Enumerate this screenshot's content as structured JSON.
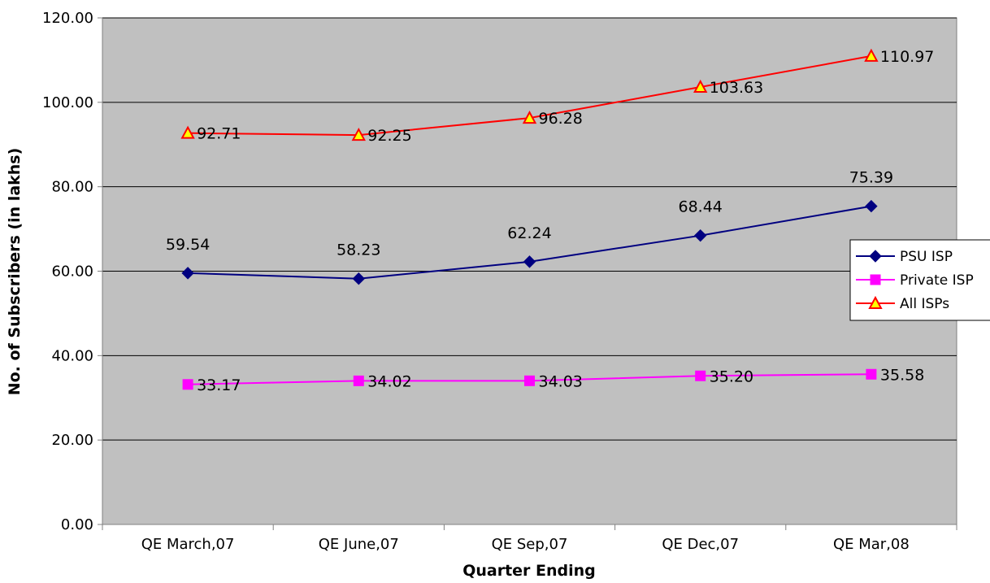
{
  "chart_data": {
    "type": "line",
    "categories": [
      "QE March,07",
      "QE June,07",
      "QE Sep,07",
      "QE Dec,07",
      "QE Mar,08"
    ],
    "series": [
      {
        "name": "PSU ISP",
        "values": [
          59.54,
          58.23,
          62.24,
          68.44,
          75.39
        ],
        "labels": [
          "59.54",
          "58.23",
          "62.24",
          "68.44",
          "75.39"
        ],
        "color": "#000080",
        "marker": "diamond"
      },
      {
        "name": "Private ISP",
        "values": [
          33.17,
          34.02,
          34.03,
          35.2,
          35.58
        ],
        "labels": [
          "33.17",
          "34.02",
          "34.03",
          "35.20",
          "35.58"
        ],
        "color": "#FF00FF",
        "marker": "square"
      },
      {
        "name": "All ISPs",
        "values": [
          92.71,
          92.25,
          96.28,
          103.63,
          110.97
        ],
        "labels": [
          "92.71",
          "92.25",
          "96.28",
          "103.63",
          "110.97"
        ],
        "color": "#FF0000",
        "marker": "triangle",
        "marker_fill": "#FFFF00"
      }
    ],
    "title": "",
    "xlabel": "Quarter Ending",
    "ylabel": "No. of Subscribers (in lakhs)",
    "ylim": [
      0,
      120
    ],
    "yticks": [
      "0.00",
      "20.00",
      "40.00",
      "60.00",
      "80.00",
      "100.00",
      "120.00"
    ],
    "grid": true,
    "plot_background": "#C0C0C0",
    "legend_position": "right"
  }
}
